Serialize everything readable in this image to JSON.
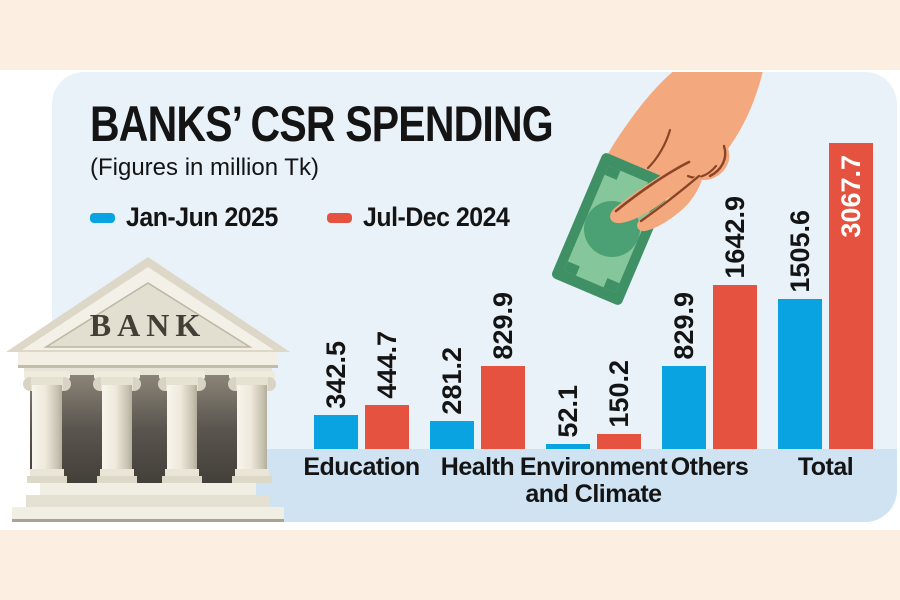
{
  "header": {
    "title": "BANKS’ CSR SPENDING",
    "subtitle": "(Figures in million Tk)"
  },
  "legend": {
    "items": [
      {
        "label": "Jan-Jun 2025",
        "color": "#0aa3e1"
      },
      {
        "label": "Jul-Dec 2024",
        "color": "#e5523f"
      }
    ]
  },
  "chart_data": {
    "type": "bar",
    "title": "BANKS’ CSR SPENDING",
    "unit": "million Tk",
    "categories": [
      "Education",
      "Health",
      "Environment and Climate",
      "Others",
      "Total"
    ],
    "series": [
      {
        "name": "Jan-Jun 2025",
        "color": "#0aa3e1",
        "values": [
          342.5,
          281.2,
          52.1,
          829.9,
          1505.6
        ]
      },
      {
        "name": "Jul-Dec 2024",
        "color": "#e5523f",
        "values": [
          444.7,
          829.9,
          150.2,
          1642.9,
          3067.7
        ]
      }
    ],
    "value_labels": "rotated-vertical",
    "inside_label": {
      "series": 1,
      "category": 4
    },
    "ylim": [
      0,
      3200
    ],
    "grid": false,
    "legend_position": "top-left"
  },
  "illustrations": {
    "bank_building": {
      "icon": "bank-building-icon",
      "label": "BANK"
    },
    "hand_money": {
      "icon": "hand-giving-money-icon"
    }
  },
  "colors": {
    "background": "#ffffff",
    "top_band": "#fcefe1",
    "bottom_band": "#fcefe1",
    "panel": "#e9f1f9",
    "axis_band": "#cfe3f3",
    "text": "#141414",
    "inside_label_text": "#ffffff"
  }
}
